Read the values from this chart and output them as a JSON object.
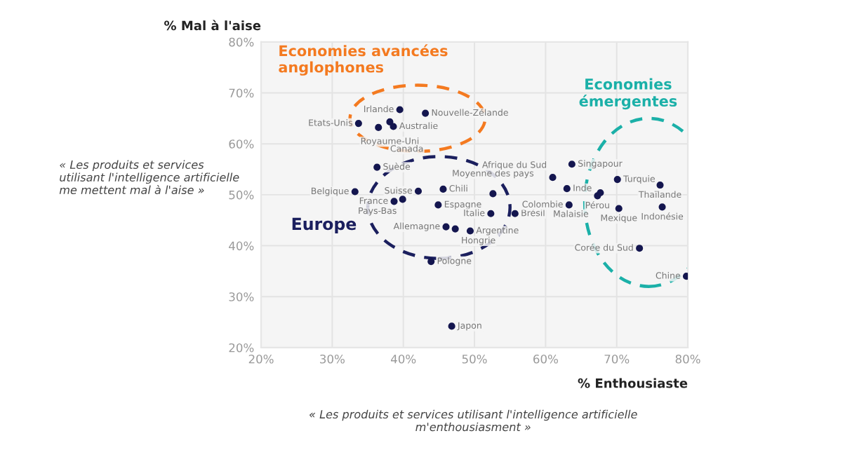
{
  "chart_data": {
    "type": "scatter",
    "xlabel": "% Enthousiaste",
    "ylabel": "% Mal à l'aise",
    "series": [
      {
        "color": "#14164f",
        "x": [
          39.5,
          43.1,
          33.7,
          38.1,
          38.6,
          36.5,
          36.3,
          33.2,
          42.1,
          45.6,
          38.7,
          39.9,
          44.9,
          52.6,
          52.3,
          55.7,
          49.4,
          46.0,
          47.3,
          43.9,
          46.8,
          63.7,
          61.0,
          70.1,
          76.1,
          63.0,
          67.7,
          67.3,
          63.3,
          70.3,
          76.4,
          73.2,
          79.8
        ],
        "values": [
          66.7,
          66.0,
          64.0,
          64.3,
          63.4,
          63.2,
          55.4,
          50.6,
          50.7,
          51.1,
          48.7,
          49.1,
          48.0,
          50.2,
          46.3,
          46.3,
          42.9,
          43.7,
          43.3,
          36.9,
          24.2,
          56.0,
          53.4,
          53.0,
          51.9,
          51.2,
          50.4,
          49.8,
          48.0,
          47.3,
          47.6,
          39.5,
          34.0
        ]
      }
    ],
    "xlim": [
      20,
      80
    ],
    "ylim": [
      20,
      80
    ],
    "xticks": [
      {
        "value": 20,
        "label": "20%"
      },
      {
        "value": 30,
        "label": "30%"
      },
      {
        "value": 40,
        "label": "40%"
      },
      {
        "value": 50,
        "label": "50%"
      },
      {
        "value": 60,
        "label": "60%"
      },
      {
        "value": 70,
        "label": "70%"
      },
      {
        "value": 80,
        "label": "80%"
      }
    ],
    "yticks": [
      {
        "value": 20,
        "label": "20%"
      },
      {
        "value": 30,
        "label": "30%"
      },
      {
        "value": 40,
        "label": "40%"
      },
      {
        "value": 50,
        "label": "50%"
      },
      {
        "value": 60,
        "label": "60%"
      },
      {
        "value": 70,
        "label": "70%"
      },
      {
        "value": 80,
        "label": "80%"
      }
    ],
    "grid": true,
    "marker": "circle",
    "annotations": [
      {
        "text": "Irlande",
        "x": 39.5,
        "y": 66.7
      },
      {
        "text": "Nouvelle-Zélande",
        "x": 43.1,
        "y": 66.0
      },
      {
        "text": "Etats-Unis",
        "x": 33.7,
        "y": 64.0
      },
      {
        "text": "Royaume-Uni",
        "x": 38.1,
        "y": 64.3
      },
      {
        "text": "Australie",
        "x": 38.6,
        "y": 63.4
      },
      {
        "text": "Canada",
        "x": 36.5,
        "y": 63.2
      },
      {
        "text": "Suède",
        "x": 36.3,
        "y": 55.4
      },
      {
        "text": "Belgique",
        "x": 33.2,
        "y": 50.6
      },
      {
        "text": "Suisse",
        "x": 42.1,
        "y": 50.7
      },
      {
        "text": "Chili",
        "x": 45.6,
        "y": 51.1
      },
      {
        "text": "France",
        "x": 38.7,
        "y": 48.7
      },
      {
        "text": "Pays-Bas",
        "x": 39.9,
        "y": 49.1
      },
      {
        "text": "Espagne",
        "x": 44.9,
        "y": 48.0
      },
      {
        "text": "Moyenne des pays",
        "x": 52.6,
        "y": 50.2
      },
      {
        "text": "Brésil",
        "x": 55.7,
        "y": 46.3
      },
      {
        "text": "Argentine",
        "x": 49.4,
        "y": 42.9
      },
      {
        "text": "Italie",
        "x": 52.3,
        "y": 46.3
      },
      {
        "text": "Allemagne",
        "x": 46.0,
        "y": 43.7
      },
      {
        "text": "Hongrie",
        "x": 47.3,
        "y": 43.3
      },
      {
        "text": "Pologne",
        "x": 43.9,
        "y": 36.9
      },
      {
        "text": "Japon",
        "x": 46.8,
        "y": 24.2
      },
      {
        "text": "Singapour",
        "x": 63.7,
        "y": 56.0
      },
      {
        "text": "Afrique du Sud",
        "x": 61.0,
        "y": 53.4
      },
      {
        "text": "Turquie",
        "x": 70.1,
        "y": 53.0
      },
      {
        "text": "Thaïlande",
        "x": 76.1,
        "y": 51.9
      },
      {
        "text": "Inde",
        "x": 63.0,
        "y": 51.2
      },
      {
        "text": "Malaisie",
        "x": 67.7,
        "y": 50.4
      },
      {
        "text": "Pérou",
        "x": 67.3,
        "y": 49.8
      },
      {
        "text": "Colombie",
        "x": 63.3,
        "y": 48.0
      },
      {
        "text": "Mexique",
        "x": 70.3,
        "y": 47.3
      },
      {
        "text": "Indonésie",
        "x": 76.4,
        "y": 47.6
      },
      {
        "text": "Corée du Sud",
        "x": 73.2,
        "y": 39.5
      },
      {
        "text": "Chine",
        "x": 79.8,
        "y": 34.0
      },
      "Economies avancées anglophones",
      "Europe",
      "Economies émergentes",
      "« Les produits et services utilisant l'intelligence artificielle me mettent mal à l'aise »",
      "« Les produits et services utilisant l'intelligence artificielle m'enthousiasment »"
    ]
  }
}
